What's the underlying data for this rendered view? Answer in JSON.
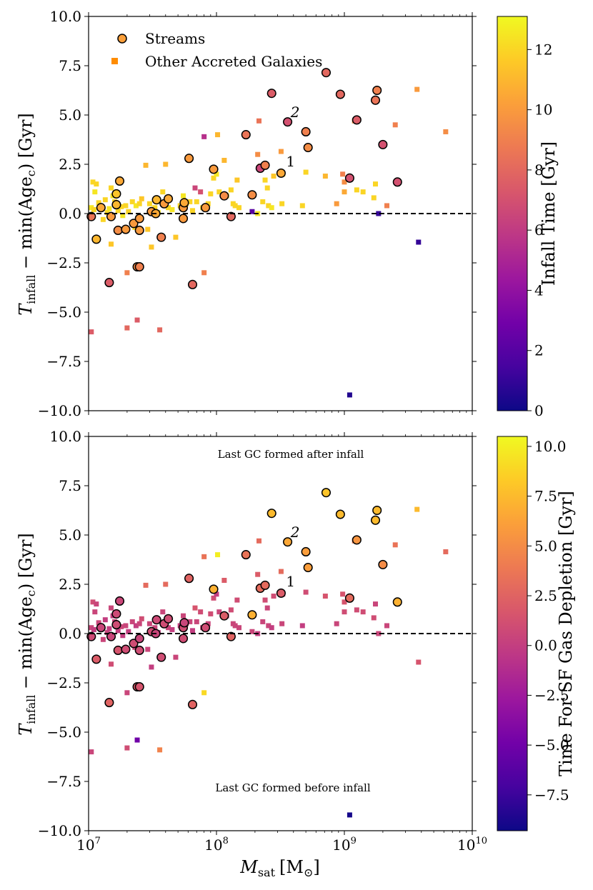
{
  "colormap": [
    "#0d0887",
    "#46039f",
    "#7201a8",
    "#9c179e",
    "#bd3786",
    "#d8576b",
    "#ed7953",
    "#fb9f3a",
    "#fdca26",
    "#f0f921"
  ],
  "chart_data": [
    {
      "type": "scatter",
      "panel": "top",
      "xlabel_main": "M",
      "xlabel_sub": "sat",
      "xlabel_unit": "[M",
      "xlabel_unit_sub": "⊙",
      "xlabel_close": "]",
      "ylabel_main": "T",
      "ylabel_sub": "infall",
      "ylabel_rest": " − min(Age",
      "ylabel_rest_sub": "c",
      "ylabel_close": ") [Gyr]",
      "xscale": "log",
      "xlim": [
        10000000.0,
        10000000000.0
      ],
      "ylim": [
        -10,
        10
      ],
      "yticks": [
        -10,
        -7.5,
        -5,
        -2.5,
        0,
        2.5,
        5,
        7.5,
        10
      ],
      "ytick_labels": [
        "−10.0",
        "−7.5",
        "−5.0",
        "−2.5",
        "0.0",
        "2.5",
        "5.0",
        "7.5",
        "10.0"
      ],
      "xtick_labels": [],
      "hline_y": 0,
      "legend": {
        "streams": "Streams",
        "other": "Other Accreted Galaxies"
      },
      "annotations": [
        {
          "text": "1",
          "x": 350000000.0,
          "y": 2.4
        },
        {
          "text": "2",
          "x": 380000000.0,
          "y": 4.9
        }
      ],
      "colorbar": {
        "label": "Infall Time [Gyr]",
        "range": [
          0,
          13.1
        ],
        "ticks": [
          0,
          2,
          4,
          6,
          8,
          10,
          12
        ],
        "tick_labels": [
          "0",
          "2",
          "4",
          "6",
          "8",
          "10",
          "12"
        ]
      }
    },
    {
      "type": "scatter",
      "panel": "bottom",
      "xlabel_main": "M",
      "xlabel_sub": "sat",
      "xlabel_unit": "[M",
      "xlabel_unit_sub": "⊙",
      "xlabel_close": "]",
      "ylabel_main": "T",
      "ylabel_sub": "infall",
      "ylabel_rest": " − min(Age",
      "ylabel_rest_sub": "c",
      "ylabel_close": ") [Gyr]",
      "xscale": "log",
      "xlim": [
        10000000.0,
        10000000000.0
      ],
      "ylim": [
        -10,
        10
      ],
      "yticks": [
        -10,
        -7.5,
        -5,
        -2.5,
        0,
        2.5,
        5,
        7.5,
        10
      ],
      "ytick_labels": [
        "−10.0",
        "−7.5",
        "−5.0",
        "−2.5",
        "0.0",
        "2.5",
        "5.0",
        "7.5",
        "10.0"
      ],
      "xticks": [
        10000000.0,
        100000000.0,
        1000000000.0,
        10000000000.0
      ],
      "xtick_labels": [
        {
          "base": "10",
          "exp": "7"
        },
        {
          "base": "10",
          "exp": "8"
        },
        {
          "base": "10",
          "exp": "9"
        },
        {
          "base": "10",
          "exp": "10"
        }
      ],
      "hline_y": 0,
      "text_top": "Last GC formed after infall",
      "text_bottom": "Last GC formed before infall",
      "annotations": [
        {
          "text": "1",
          "x": 350000000.0,
          "y": 2.4
        },
        {
          "text": "2",
          "x": 380000000.0,
          "y": 4.9
        }
      ],
      "colorbar": {
        "label": "Time For SF Gas Depletion [Gyr]",
        "range": [
          -9.3,
          10.5
        ],
        "ticks": [
          -7.5,
          -5,
          -2.5,
          0,
          2.5,
          5,
          7.5,
          10
        ],
        "tick_labels": [
          "−7.5",
          "−5.0",
          "−2.5",
          "0.0",
          "2.5",
          "5.0",
          "7.5",
          "10.0"
        ]
      }
    }
  ],
  "streams": [
    {
      "x": 10500000.0,
      "y": -0.15,
      "c1": 8.5,
      "c2": 0.8
    },
    {
      "x": 11500000.0,
      "y": -1.3,
      "c1": 11.0,
      "c2": 2.0
    },
    {
      "x": 12500000.0,
      "y": 0.3,
      "c1": 10.5,
      "c2": 0.5
    },
    {
      "x": 14500000.0,
      "y": -3.5,
      "c1": 7.5,
      "c2": 2.5
    },
    {
      "x": 15000000.0,
      "y": -0.15,
      "c1": 10.0,
      "c2": 0.5
    },
    {
      "x": 16500000.0,
      "y": 0.45,
      "c1": 11.0,
      "c2": 1.0
    },
    {
      "x": 16500000.0,
      "y": 1.0,
      "c1": 11.5,
      "c2": 0.8
    },
    {
      "x": 17000000.0,
      "y": -0.85,
      "c1": 9.5,
      "c2": 1.5
    },
    {
      "x": 17500000.0,
      "y": 1.65,
      "c1": 10.5,
      "c2": 0.6
    },
    {
      "x": 19500000.0,
      "y": -0.8,
      "c1": 10.0,
      "c2": 1.0
    },
    {
      "x": 22500000.0,
      "y": -0.5,
      "c1": 10.0,
      "c2": 1.0
    },
    {
      "x": 24000000.0,
      "y": -2.7,
      "c1": 9.5,
      "c2": 2.0
    },
    {
      "x": 25000000.0,
      "y": -2.7,
      "c1": 9.0,
      "c2": 1.5
    },
    {
      "x": 25000000.0,
      "y": -0.85,
      "c1": 10.0,
      "c2": 1.0
    },
    {
      "x": 25000000.0,
      "y": -0.25,
      "c1": 10.0,
      "c2": 0.5
    },
    {
      "x": 31000000.0,
      "y": 0.1,
      "c1": 10.0,
      "c2": 1.0
    },
    {
      "x": 33500000.0,
      "y": 0.0,
      "c1": 10.5,
      "c2": 0.5
    },
    {
      "x": 34000000.0,
      "y": 0.7,
      "c1": 11.0,
      "c2": 0.8
    },
    {
      "x": 37000000.0,
      "y": -1.2,
      "c1": 9.0,
      "c2": 1.0
    },
    {
      "x": 39000000.0,
      "y": 0.5,
      "c1": 10.0,
      "c2": 1.0
    },
    {
      "x": 42000000.0,
      "y": 0.75,
      "c1": 10.5,
      "c2": 1.0
    },
    {
      "x": 55000000.0,
      "y": 0.3,
      "c1": 10.0,
      "c2": 1.0
    },
    {
      "x": 55000000.0,
      "y": -0.25,
      "c1": 10.0,
      "c2": 1.0
    },
    {
      "x": 56000000.0,
      "y": 0.55,
      "c1": 10.5,
      "c2": 0.5
    },
    {
      "x": 61000000.0,
      "y": 2.8,
      "c1": 10.0,
      "c2": 2.5
    },
    {
      "x": 65000000.0,
      "y": -3.6,
      "c1": 8.0,
      "c2": 2.5
    },
    {
      "x": 82000000.0,
      "y": 0.3,
      "c1": 10.0,
      "c2": 1.0
    },
    {
      "x": 95000000.0,
      "y": 2.25,
      "c1": 10.0,
      "c2": 7.0
    },
    {
      "x": 115000000.0,
      "y": 0.9,
      "c1": 9.5,
      "c2": 2.0
    },
    {
      "x": 130000000.0,
      "y": -0.15,
      "c1": 8.0,
      "c2": 2.5
    },
    {
      "x": 170000000.0,
      "y": 4.0,
      "c1": 8.5,
      "c2": 3.5
    },
    {
      "x": 190000000.0,
      "y": 0.95,
      "c1": 9.5,
      "c2": 7.0
    },
    {
      "x": 220000000.0,
      "y": 2.3,
      "c1": 6.5,
      "c2": 3.0
    },
    {
      "x": 240000000.0,
      "y": 2.45,
      "c1": 9.0,
      "c2": 3.0
    },
    {
      "x": 270000000.0,
      "y": 6.1,
      "c1": 7.5,
      "c2": 7.5
    },
    {
      "x": 320000000.0,
      "y": 2.05,
      "c1": 10.5,
      "c2": 2.0
    },
    {
      "x": 360000000.0,
      "y": 4.65,
      "c1": 7.0,
      "c2": 6.5
    },
    {
      "x": 500000000.0,
      "y": 4.15,
      "c1": 9.0,
      "c2": 6.0
    },
    {
      "x": 520000000.0,
      "y": 3.35,
      "c1": 9.5,
      "c2": 6.0
    },
    {
      "x": 720000000.0,
      "y": 7.15,
      "c1": 8.0,
      "c2": 8.0
    },
    {
      "x": 930000000.0,
      "y": 6.05,
      "c1": 8.0,
      "c2": 7.5
    },
    {
      "x": 1100000000.0,
      "y": 1.8,
      "c1": 7.0,
      "c2": 3.0
    },
    {
      "x": 1250000000.0,
      "y": 4.75,
      "c1": 7.5,
      "c2": 5.5
    },
    {
      "x": 1750000000.0,
      "y": 5.75,
      "c1": 8.5,
      "c2": 7.5
    },
    {
      "x": 1800000000.0,
      "y": 6.25,
      "c1": 9.0,
      "c2": 7.5
    },
    {
      "x": 2000000000.0,
      "y": 3.5,
      "c1": 7.0,
      "c2": 5.0
    },
    {
      "x": 2600000000.0,
      "y": 1.6,
      "c1": 7.0,
      "c2": 7.0
    }
  ],
  "others": [
    {
      "x": 10500000.0,
      "y": 0.3,
      "c1": 12.5,
      "c2": 0.5
    },
    {
      "x": 10500000.0,
      "y": -6.0,
      "c1": 7.5,
      "c2": 0.5
    },
    {
      "x": 10800000.0,
      "y": 1.6,
      "c1": 12.0,
      "c2": 1.0
    },
    {
      "x": 11000000.0,
      "y": 0.2,
      "c1": 12.0,
      "c2": 0.0
    },
    {
      "x": 11200000.0,
      "y": 1.1,
      "c1": 12.5,
      "c2": 0.5
    },
    {
      "x": 11500000.0,
      "y": 1.5,
      "c1": 12.0,
      "c2": 0.5
    },
    {
      "x": 12000000.0,
      "y": 0.55,
      "c1": 12.0,
      "c2": 0.5
    },
    {
      "x": 13000000.0,
      "y": -0.3,
      "c1": 12.0,
      "c2": 0.5
    },
    {
      "x": 13500000.0,
      "y": 0.7,
      "c1": 12.0,
      "c2": 0.0
    },
    {
      "x": 14000000.0,
      "y": 0.05,
      "c1": 12.0,
      "c2": 0.5
    },
    {
      "x": 14500000.0,
      "y": 0.25,
      "c1": 12.5,
      "c2": 0.0
    },
    {
      "x": 15000000.0,
      "y": -1.55,
      "c1": 11.5,
      "c2": 1.0
    },
    {
      "x": 15000000.0,
      "y": 1.3,
      "c1": 12.0,
      "c2": 0.5
    },
    {
      "x": 15500000.0,
      "y": 0.9,
      "c1": 12.5,
      "c2": 0.0
    },
    {
      "x": 16000000.0,
      "y": 0.6,
      "c1": 12.0,
      "c2": 0.5
    },
    {
      "x": 17000000.0,
      "y": 0.15,
      "c1": 12.0,
      "c2": 0.0
    },
    {
      "x": 18000000.0,
      "y": 0.35,
      "c1": 12.0,
      "c2": 0.5
    },
    {
      "x": 18500000.0,
      "y": -0.1,
      "c1": 12.5,
      "c2": 0.0
    },
    {
      "x": 19500000.0,
      "y": 0.4,
      "c1": 12.0,
      "c2": 0.5
    },
    {
      "x": 20000000.0,
      "y": -3.0,
      "c1": 9.0,
      "c2": 0.5
    },
    {
      "x": 20000000.0,
      "y": -5.8,
      "c1": 8.0,
      "c2": 1.0
    },
    {
      "x": 20500000.0,
      "y": 0.1,
      "c1": 12.0,
      "c2": 0.0
    },
    {
      "x": 22000000.0,
      "y": 0.6,
      "c1": 12.0,
      "c2": 0.5
    },
    {
      "x": 23000000.0,
      "y": -0.7,
      "c1": 12.0,
      "c2": 0.5
    },
    {
      "x": 23500000.0,
      "y": 0.4,
      "c1": 12.5,
      "c2": 0.0
    },
    {
      "x": 24000000.0,
      "y": -5.4,
      "c1": 7.5,
      "c2": -5.0
    },
    {
      "x": 25000000.0,
      "y": 0.5,
      "c1": 12.0,
      "c2": 0.5
    },
    {
      "x": 26000000.0,
      "y": 0.75,
      "c1": 11.5,
      "c2": 1.0
    },
    {
      "x": 28000000.0,
      "y": 2.45,
      "c1": 11.0,
      "c2": 3.0
    },
    {
      "x": 29000000.0,
      "y": -0.8,
      "c1": 11.5,
      "c2": 0.5
    },
    {
      "x": 30000000.0,
      "y": 0.5,
      "c1": 12.0,
      "c2": 0.5
    },
    {
      "x": 31000000.0,
      "y": -1.7,
      "c1": 11.5,
      "c2": 0.0
    },
    {
      "x": 33000000.0,
      "y": 0.3,
      "c1": 12.0,
      "c2": 0.5
    },
    {
      "x": 35000000.0,
      "y": 0.05,
      "c1": 12.5,
      "c2": 0.0
    },
    {
      "x": 36000000.0,
      "y": -5.9,
      "c1": 8.0,
      "c2": 4.5
    },
    {
      "x": 38000000.0,
      "y": 1.1,
      "c1": 12.0,
      "c2": 0.5
    },
    {
      "x": 40000000.0,
      "y": 2.5,
      "c1": 11.0,
      "c2": 3.0
    },
    {
      "x": 42000000.0,
      "y": 0.3,
      "c1": 12.0,
      "c2": 0.5
    },
    {
      "x": 45000000.0,
      "y": 0.2,
      "c1": 12.5,
      "c2": 0.0
    },
    {
      "x": 48000000.0,
      "y": -1.2,
      "c1": 11.5,
      "c2": 0.5
    },
    {
      "x": 52000000.0,
      "y": 0.4,
      "c1": 12.0,
      "c2": 0.0
    },
    {
      "x": 55000000.0,
      "y": 0.9,
      "c1": 12.5,
      "c2": 0.5
    },
    {
      "x": 58000000.0,
      "y": 0.5,
      "c1": 12.0,
      "c2": 1.0
    },
    {
      "x": 62000000.0,
      "y": 0.6,
      "c1": 12.0,
      "c2": 0.5
    },
    {
      "x": 65000000.0,
      "y": 0.15,
      "c1": 12.0,
      "c2": 0.0
    },
    {
      "x": 68000000.0,
      "y": 1.3,
      "c1": 6.5,
      "c2": 1.5
    },
    {
      "x": 70000000.0,
      "y": 0.6,
      "c1": 12.0,
      "c2": 0.5
    },
    {
      "x": 75000000.0,
      "y": 1.1,
      "c1": 7.0,
      "c2": 1.0
    },
    {
      "x": 78000000.0,
      "y": 0.3,
      "c1": 12.0,
      "c2": 0.5
    },
    {
      "x": 80000000.0,
      "y": 3.9,
      "c1": 5.5,
      "c2": 3.5
    },
    {
      "x": 80000000.0,
      "y": -3.0,
      "c1": 9.0,
      "c2": 9.0
    },
    {
      "x": 86000000.0,
      "y": 0.5,
      "c1": 12.0,
      "c2": 0.5
    },
    {
      "x": 90000000.0,
      "y": 1.0,
      "c1": 12.0,
      "c2": 1.0
    },
    {
      "x": 95000000.0,
      "y": 1.8,
      "c1": 12.0,
      "c2": 1.0
    },
    {
      "x": 100000000.0,
      "y": 2.0,
      "c1": 12.5,
      "c2": 0.0
    },
    {
      "x": 102000000.0,
      "y": 4.0,
      "c1": 11.0,
      "c2": 10.0
    },
    {
      "x": 105000000.0,
      "y": 1.1,
      "c1": 12.0,
      "c2": 0.5
    },
    {
      "x": 115000000.0,
      "y": 2.7,
      "c1": 11.0,
      "c2": 2.0
    },
    {
      "x": 120000000.0,
      "y": 0.9,
      "c1": 12.0,
      "c2": 0.5
    },
    {
      "x": 130000000.0,
      "y": 1.2,
      "c1": 12.0,
      "c2": 1.0
    },
    {
      "x": 135000000.0,
      "y": 0.5,
      "c1": 12.0,
      "c2": 0.5
    },
    {
      "x": 140000000.0,
      "y": 0.4,
      "c1": 12.0,
      "c2": 0.5
    },
    {
      "x": 145000000.0,
      "y": 1.7,
      "c1": 11.5,
      "c2": 1.0
    },
    {
      "x": 150000000.0,
      "y": 0.3,
      "c1": 12.0,
      "c2": 0.5
    },
    {
      "x": 190000000.0,
      "y": 0.1,
      "c1": 2.0,
      "c2": 0.5
    },
    {
      "x": 210000000.0,
      "y": 0.0,
      "c1": 12.5,
      "c2": 0.0
    },
    {
      "x": 210000000.0,
      "y": 3.0,
      "c1": 9.5,
      "c2": 2.0
    },
    {
      "x": 215000000.0,
      "y": 4.7,
      "c1": 8.5,
      "c2": 3.0
    },
    {
      "x": 220000000.0,
      "y": 2.4,
      "c1": 10.0,
      "c2": 3.0
    },
    {
      "x": 230000000.0,
      "y": 0.6,
      "c1": 12.0,
      "c2": 0.5
    },
    {
      "x": 240000000.0,
      "y": 1.7,
      "c1": 12.0,
      "c2": 1.0
    },
    {
      "x": 250000000.0,
      "y": 1.3,
      "c1": 12.0,
      "c2": 0.5
    },
    {
      "x": 255000000.0,
      "y": 0.4,
      "c1": 12.0,
      "c2": 0.5
    },
    {
      "x": 270000000.0,
      "y": 0.3,
      "c1": 12.5,
      "c2": 0.0
    },
    {
      "x": 280000000.0,
      "y": 1.9,
      "c1": 11.5,
      "c2": 1.0
    },
    {
      "x": 320000000.0,
      "y": 3.15,
      "c1": 10.0,
      "c2": 3.0
    },
    {
      "x": 325000000.0,
      "y": 0.5,
      "c1": 12.0,
      "c2": 0.5
    },
    {
      "x": 330000000.0,
      "y": 2.0,
      "c1": 12.0,
      "c2": 1.0
    },
    {
      "x": 470000000.0,
      "y": 0.4,
      "c1": 12.0,
      "c2": 0.0
    },
    {
      "x": 500000000.0,
      "y": 2.1,
      "c1": 12.0,
      "c2": 1.0
    },
    {
      "x": 710000000.0,
      "y": 1.9,
      "c1": 11.0,
      "c2": 1.5
    },
    {
      "x": 870000000.0,
      "y": 0.5,
      "c1": 10.0,
      "c2": 0.5
    },
    {
      "x": 970000000.0,
      "y": 2.0,
      "c1": 9.0,
      "c2": 1.5
    },
    {
      "x": 1000000000.0,
      "y": 1.6,
      "c1": 9.5,
      "c2": 1.5
    },
    {
      "x": 1000000000.0,
      "y": 1.1,
      "c1": 10.5,
      "c2": 1.0
    },
    {
      "x": 1100000000.0,
      "y": -9.2,
      "c1": 0.5,
      "c2": -9.0
    },
    {
      "x": 1200000000.0,
      "y": 4.7,
      "c1": 9.5,
      "c2": 4.0
    },
    {
      "x": 1250000000.0,
      "y": 1.2,
      "c1": 12.0,
      "c2": 1.0
    },
    {
      "x": 1400000000.0,
      "y": 1.1,
      "c1": 12.0,
      "c2": 1.0
    },
    {
      "x": 1700000000.0,
      "y": 0.8,
      "c1": 12.0,
      "c2": 1.0
    },
    {
      "x": 1750000000.0,
      "y": 1.5,
      "c1": 12.0,
      "c2": 0.5
    },
    {
      "x": 1850000000.0,
      "y": 0.0,
      "c1": 1.0,
      "c2": 0.5
    },
    {
      "x": 2150000000.0,
      "y": 0.4,
      "c1": 9.0,
      "c2": 0.5
    },
    {
      "x": 2500000000.0,
      "y": 4.5,
      "c1": 9.0,
      "c2": 3.5
    },
    {
      "x": 3700000000.0,
      "y": 6.3,
      "c1": 10.0,
      "c2": 7.5
    },
    {
      "x": 3800000000.0,
      "y": -1.45,
      "c1": 1.0,
      "c2": 1.5
    },
    {
      "x": 6200000000.0,
      "y": 4.15,
      "c1": 9.5,
      "c2": 3.0
    }
  ]
}
